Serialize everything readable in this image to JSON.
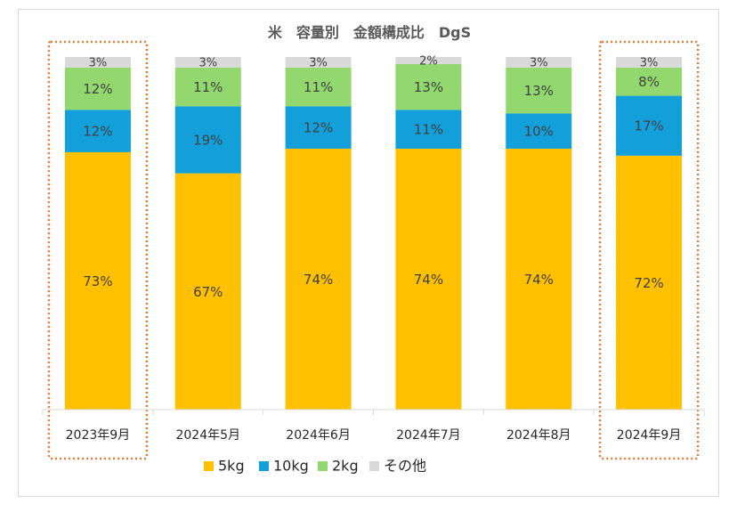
{
  "chart_data": {
    "type": "bar",
    "stacked": true,
    "percent": true,
    "title": "米　容量別　金額構成比　DgS",
    "categories": [
      "2023年9月",
      "2024年5月",
      "2024年6月",
      "2024年7月",
      "2024年8月",
      "2024年9月"
    ],
    "series": [
      {
        "name": "5kg",
        "color": "#FFC000",
        "values": [
          73,
          67,
          74,
          74,
          74,
          72
        ],
        "labels": [
          "73%",
          "67%",
          "74%",
          "74%",
          "74%",
          "72%"
        ]
      },
      {
        "name": "10kg",
        "color": "#129FDA",
        "values": [
          12,
          19,
          12,
          11,
          10,
          17
        ],
        "labels": [
          "12%",
          "19%",
          "12%",
          "11%",
          "10%",
          "17%"
        ]
      },
      {
        "name": "2kg",
        "color": "#92D86E",
        "values": [
          12,
          11,
          11,
          13,
          13,
          8
        ],
        "labels": [
          "12%",
          "11%",
          "11%",
          "13%",
          "13%",
          "8%"
        ]
      },
      {
        "name": "その他",
        "color": "#D9D9D9",
        "values": [
          3,
          3,
          3,
          2,
          3,
          3
        ],
        "labels": [
          "3%",
          "3%",
          "3%",
          "2%",
          "3%",
          "3%"
        ]
      }
    ],
    "ylim": [
      0,
      100
    ],
    "legend": "bottom",
    "highlighted_categories": [
      "2023年9月",
      "2024年9月"
    ],
    "highlight_color": "#E07B39"
  }
}
